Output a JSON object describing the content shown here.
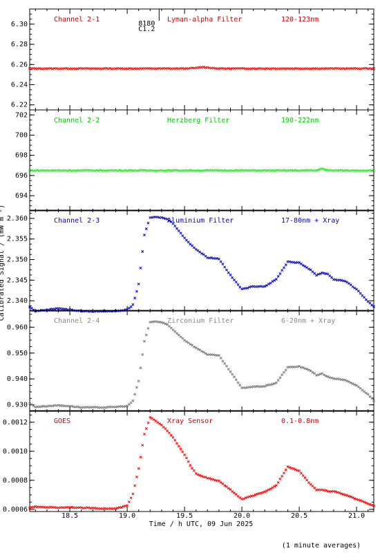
{
  "figure": {
    "ylabel": "Calibrated Signal / (mW m⁻²)",
    "xlabel": "Time / h UTC, 09 Jun 2025",
    "footnote": "(1 minute averages)",
    "flare_marker": {
      "line1": "8180",
      "line2": "C1.2",
      "time": 19.17
    },
    "x_ticks": [
      "18.5",
      "19.0",
      "19.5",
      "20.0",
      "20.5",
      "21.0"
    ]
  },
  "chart_data": [
    {
      "type": "scatter",
      "channel": "Channel 2-1",
      "filter": "Lyman-alpha Filter",
      "band": "120-123nm",
      "color": "#ff0000",
      "label_color": "#cc0000",
      "yticks": [
        "6.30",
        "6.28",
        "6.26",
        "6.24",
        "6.22"
      ],
      "ylim": [
        6.215,
        6.315
      ],
      "xlim": [
        18.15,
        21.15
      ],
      "x": [
        18.15,
        19.5,
        19.6,
        19.65,
        19.7,
        19.8,
        21.15
      ],
      "y": [
        6.256,
        6.256,
        6.2565,
        6.2575,
        6.257,
        6.256,
        6.256
      ]
    },
    {
      "type": "scatter",
      "channel": "Channel 2-2",
      "filter": "Herzberg Filter",
      "band": "190-222nm",
      "color": "#00ff00",
      "label_color": "#00cc00",
      "yticks": [
        "702",
        "700",
        "698",
        "696",
        "694"
      ],
      "ylim": [
        692.5,
        702.5
      ],
      "xlim": [
        18.15,
        21.15
      ],
      "x": [
        18.15,
        20.65,
        20.7,
        20.75,
        21.15
      ],
      "y": [
        696.5,
        696.5,
        696.7,
        696.5,
        696.5
      ]
    },
    {
      "type": "scatter",
      "channel": "Channel 2-3",
      "filter": "Aluminium Filter",
      "band": "17-80nm + Xray",
      "color": "#0000cc",
      "label_color": "#0000cc",
      "yticks": [
        "2.360",
        "2.355",
        "2.350",
        "2.345",
        "2.340"
      ],
      "ylim": [
        2.3375,
        2.362
      ],
      "xlim": [
        18.15,
        21.15
      ],
      "x": [
        18.15,
        18.2,
        18.3,
        18.4,
        18.5,
        18.6,
        18.7,
        18.8,
        18.9,
        19.0,
        19.05,
        19.1,
        19.15,
        19.2,
        19.25,
        19.3,
        19.35,
        19.4,
        19.5,
        19.55,
        19.6,
        19.7,
        19.8,
        19.9,
        20.0,
        20.1,
        20.2,
        20.3,
        20.4,
        20.5,
        20.6,
        20.65,
        20.7,
        20.75,
        20.8,
        20.9,
        21.0,
        21.1,
        21.15
      ],
      "y": [
        2.3385,
        2.3375,
        2.3378,
        2.3382,
        2.3378,
        2.3375,
        2.3374,
        2.3375,
        2.3375,
        2.3378,
        2.339,
        2.344,
        2.356,
        2.3602,
        2.3603,
        2.3602,
        2.3598,
        2.3588,
        2.3552,
        2.3538,
        2.3525,
        2.3505,
        2.3502,
        2.3462,
        2.3428,
        2.3435,
        2.3435,
        2.3452,
        2.3495,
        2.3492,
        2.3475,
        2.3462,
        2.3468,
        2.3465,
        2.3452,
        2.3448,
        2.3428,
        2.3398,
        2.3385
      ]
    },
    {
      "type": "scatter",
      "channel": "Channel 2-4",
      "filter": "Zirconium Filter",
      "band": "6-20nm + Xray",
      "color": "#777777",
      "label_color": "#888888",
      "yticks": [
        "0.960",
        "0.950",
        "0.940",
        "0.930"
      ],
      "ylim": [
        0.9275,
        0.9665
      ],
      "xlim": [
        18.15,
        21.15
      ],
      "x": [
        18.15,
        18.2,
        18.3,
        18.4,
        18.5,
        18.6,
        18.7,
        18.8,
        18.9,
        19.0,
        19.05,
        19.1,
        19.15,
        19.2,
        19.25,
        19.3,
        19.35,
        19.4,
        19.5,
        19.55,
        19.6,
        19.7,
        19.8,
        19.9,
        20.0,
        20.1,
        20.2,
        20.3,
        20.4,
        20.5,
        20.6,
        20.65,
        20.7,
        20.75,
        20.8,
        20.9,
        21.0,
        21.1,
        21.15
      ],
      "y": [
        0.9305,
        0.9292,
        0.9295,
        0.9298,
        0.9295,
        0.929,
        0.929,
        0.929,
        0.9292,
        0.9295,
        0.9315,
        0.9392,
        0.9545,
        0.962,
        0.9622,
        0.9618,
        0.961,
        0.959,
        0.955,
        0.9535,
        0.952,
        0.9495,
        0.949,
        0.9428,
        0.9365,
        0.937,
        0.9372,
        0.9385,
        0.9445,
        0.9448,
        0.9432,
        0.9415,
        0.942,
        0.9408,
        0.9402,
        0.9395,
        0.9375,
        0.934,
        0.9318
      ]
    },
    {
      "type": "scatter",
      "channel": "GOES",
      "filter": "Xray Sensor",
      "band": "0.1-0.8nm",
      "color": "#ff0000",
      "label_color": "#cc0000",
      "yticks": [
        "0.0012",
        "0.0010",
        "0.0008",
        "0.0006"
      ],
      "ylim": [
        0.000585,
        0.00128
      ],
      "xlim": [
        18.15,
        21.15
      ],
      "x": [
        18.15,
        18.2,
        18.3,
        18.4,
        18.5,
        18.6,
        18.7,
        18.8,
        18.9,
        19.0,
        19.05,
        19.1,
        19.15,
        19.2,
        19.25,
        19.3,
        19.35,
        19.4,
        19.5,
        19.55,
        19.6,
        19.7,
        19.8,
        19.9,
        20.0,
        20.1,
        20.2,
        20.3,
        20.4,
        20.5,
        20.6,
        20.65,
        20.7,
        20.75,
        20.8,
        20.9,
        21.0,
        21.1,
        21.15
      ],
      "y": [
        0.00061,
        0.000618,
        0.000615,
        0.000612,
        0.000615,
        0.00061,
        0.00061,
        0.000605,
        0.000605,
        0.000625,
        0.000705,
        0.00088,
        0.00112,
        0.001235,
        0.00121,
        0.00118,
        0.00114,
        0.001095,
        0.000975,
        0.000905,
        0.000845,
        0.000815,
        0.000795,
        0.000735,
        0.00067,
        0.000695,
        0.00072,
        0.000765,
        0.000895,
        0.000865,
        0.00077,
        0.000735,
        0.000735,
        0.000725,
        0.000725,
        0.0007,
        0.00067,
        0.00064,
        0.000625
      ]
    }
  ]
}
